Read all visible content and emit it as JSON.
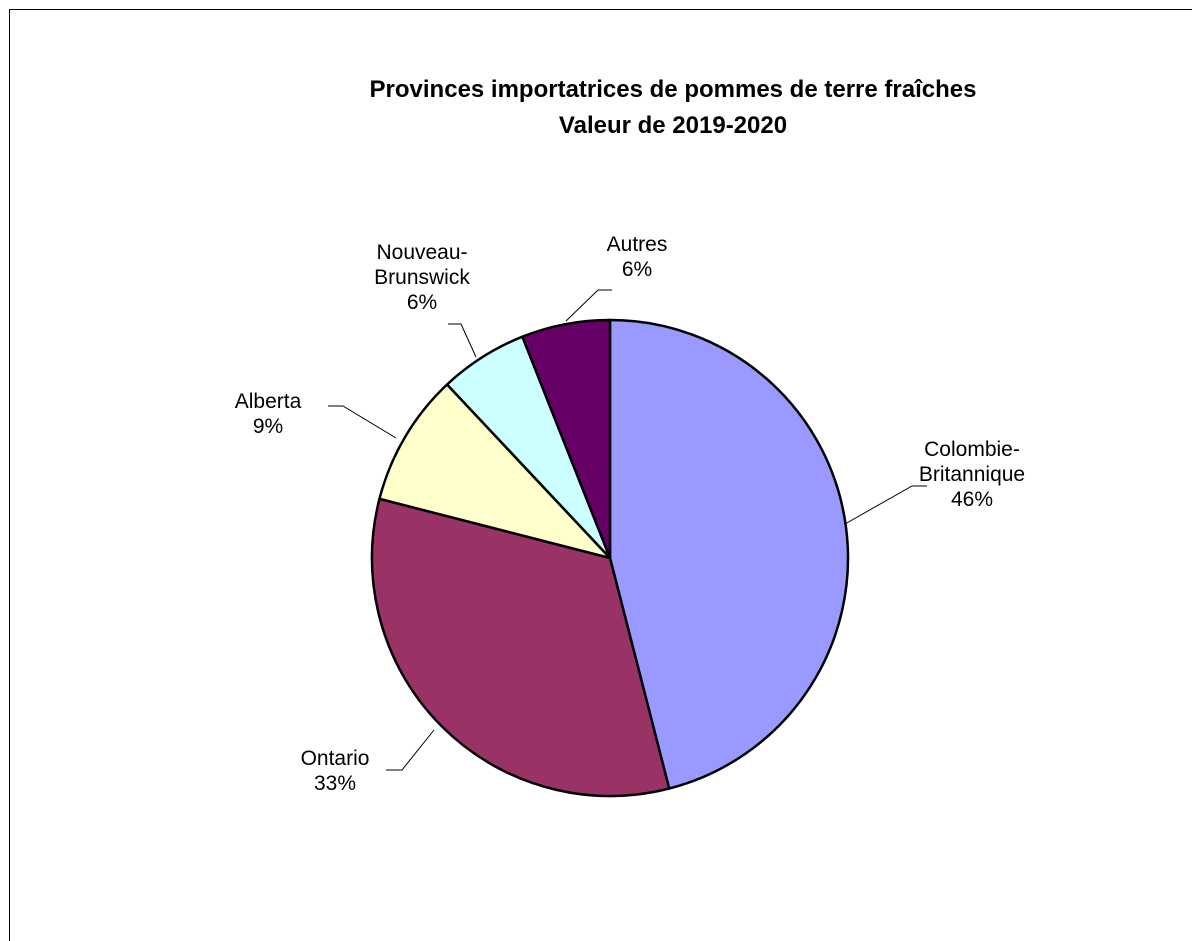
{
  "chart_data": {
    "type": "pie",
    "title": "Provinces importatrices de pommes de terre fraîches",
    "subtitle": "Valeur de 2019-2020",
    "start_angle_deg": 0,
    "direction": "clockwise",
    "slices": [
      {
        "lines": [
          "Colombie-",
          "Britannique"
        ],
        "value": 46,
        "value_label": "46%",
        "color": "#9999FF"
      },
      {
        "lines": [
          "Ontario"
        ],
        "value": 33,
        "value_label": "33%",
        "color": "#993366"
      },
      {
        "lines": [
          "Alberta"
        ],
        "value": 9,
        "value_label": "9%",
        "color": "#FFFFCC"
      },
      {
        "lines": [
          "Nouveau-",
          "Brunswick"
        ],
        "value": 6,
        "value_label": "6%",
        "color": "#CCFFFF"
      },
      {
        "lines": [
          "Autres"
        ],
        "value": 6,
        "value_label": "6%",
        "color": "#660066"
      }
    ],
    "legend": "none",
    "data_labels": "name and percentage, outside with leader lines"
  }
}
